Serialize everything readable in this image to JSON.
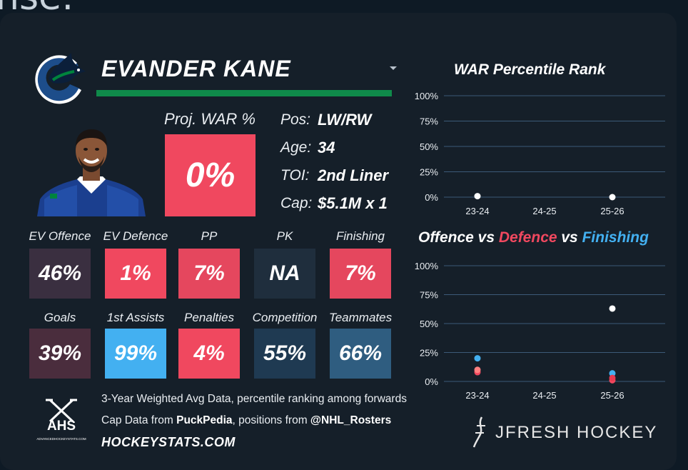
{
  "page": {
    "top_fragment": "nse:"
  },
  "player": {
    "name": "EVANDER KANE",
    "proj_label": "Proj. WAR %",
    "proj_value": "0%",
    "info": [
      {
        "key": "Pos:",
        "value": "LW/RW"
      },
      {
        "key": "Age:",
        "value": "34"
      },
      {
        "key": "TOI:",
        "value": "2nd Liner"
      },
      {
        "key": "Cap:",
        "value": "$5.1M x 1"
      }
    ]
  },
  "stats_row1": [
    {
      "label": "EV Offence",
      "value": "46%",
      "color": "#3a2f40"
    },
    {
      "label": "EV Defence",
      "value": "1%",
      "color": "#f0485f"
    },
    {
      "label": "PP",
      "value": "7%",
      "color": "#e5475e"
    },
    {
      "label": "PK",
      "value": "NA",
      "color": "#1f2e3d"
    },
    {
      "label": "Finishing",
      "value": "7%",
      "color": "#e5475e"
    }
  ],
  "stats_row2": [
    {
      "label": "Goals",
      "value": "39%",
      "color": "#4a2d3d"
    },
    {
      "label": "1st Assists",
      "value": "99%",
      "color": "#43b0f1"
    },
    {
      "label": "Penalties",
      "value": "4%",
      "color": "#f0485f"
    },
    {
      "label": "Competition",
      "value": "55%",
      "color": "#1f3a52"
    },
    {
      "label": "Teammates",
      "value": "66%",
      "color": "#2f5d80"
    }
  ],
  "footer": {
    "line1": "3-Year Weighted Avg Data, percentile ranking among forwards",
    "line2_prefix": "Cap Data from ",
    "line2_source1": "PuckPedia",
    "line2_mid": ", positions from ",
    "line2_source2": "@NHL_Rosters",
    "site": "HOCKEYSTATS.COM",
    "ahs_text": "AHS",
    "ahs_sub": "ADVANCEDHOCKEYSTATS.COM",
    "brand": "JFRESH HOCKEY"
  },
  "chart_title_parts": {
    "offence": "Offence",
    "vs1": " vs ",
    "defence": "Defence",
    "vs2": " vs ",
    "finishing": "Finishing"
  },
  "chart_data": [
    {
      "type": "scatter",
      "title": "WAR Percentile Rank",
      "categories": [
        "23-24",
        "24-25",
        "25-26"
      ],
      "yticks": [
        "0%",
        "25%",
        "50%",
        "75%",
        "100%"
      ],
      "ylim": [
        0,
        100
      ],
      "series": [
        {
          "name": "WAR",
          "color": "#ffffff",
          "values": [
            1,
            null,
            0
          ]
        }
      ]
    },
    {
      "type": "scatter",
      "title": "Offence vs Defence vs Finishing",
      "categories": [
        "23-24",
        "24-25",
        "25-26"
      ],
      "yticks": [
        "0%",
        "25%",
        "50%",
        "75%",
        "100%"
      ],
      "ylim": [
        0,
        100
      ],
      "series": [
        {
          "name": "Offence",
          "color": "#ffffff",
          "values": [
            null,
            null,
            63
          ]
        },
        {
          "name": "Defence",
          "color": "#f0485f",
          "values": [
            8,
            null,
            1
          ]
        },
        {
          "name": "Finishing",
          "color": "#43b0f1",
          "values": [
            20,
            null,
            7
          ]
        }
      ],
      "extra_points": [
        {
          "name": "Offence-overlap",
          "color": "#ff8080",
          "x": 0,
          "y": 10
        },
        {
          "name": "Defence-overlap",
          "color": "#e83a50",
          "x": 2,
          "y": 3
        }
      ]
    }
  ],
  "colors": {
    "accent_green": "#0f8a4a",
    "red": "#f0485f",
    "blue": "#43b0f1",
    "bg": "#151f29"
  }
}
